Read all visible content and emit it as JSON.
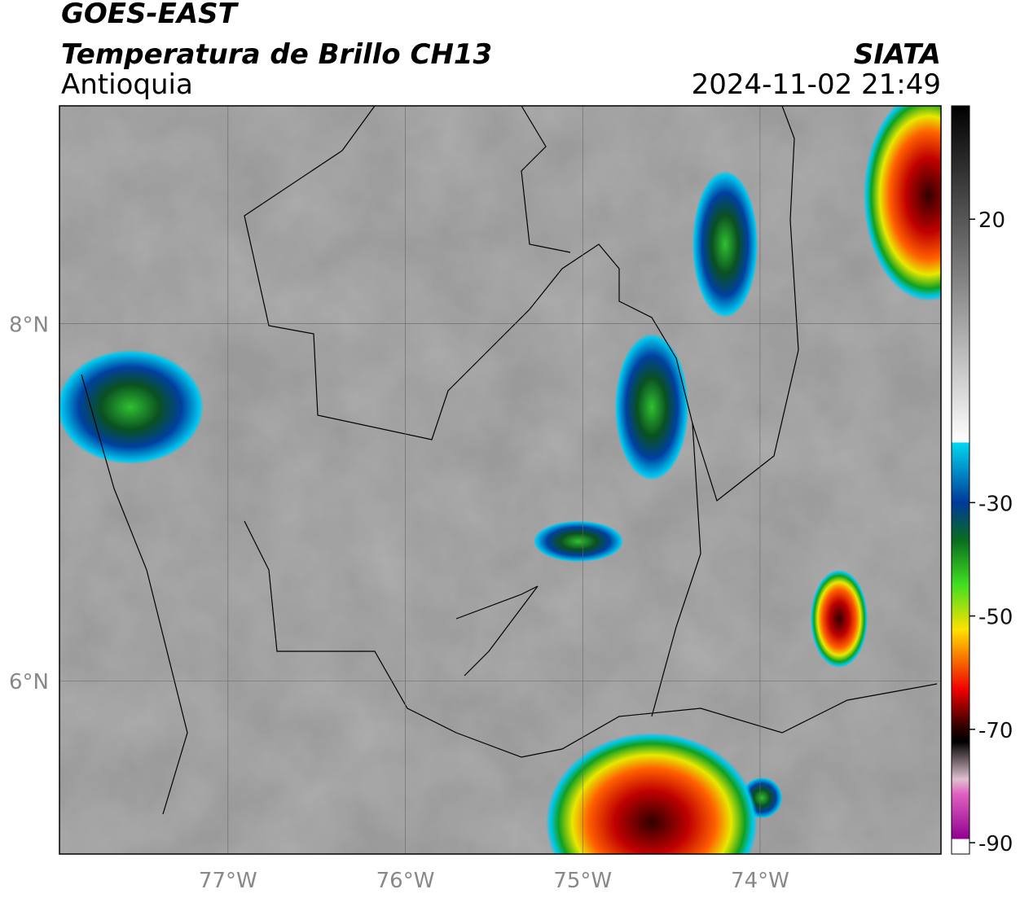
{
  "header": {
    "satellite": "GOES-EAST",
    "product": "Temperatura de Brillo CH13",
    "region": "Antioquia",
    "agency": "SIATA",
    "datetime": "2024-11-02 21:49"
  },
  "map": {
    "xlim": [
      -77.95,
      -72.98
    ],
    "ylim": [
      5.03,
      9.22
    ],
    "longitudes": [
      {
        "value": -77,
        "label": "77°W"
      },
      {
        "value": -76,
        "label": "76°W"
      },
      {
        "value": -75,
        "label": "75°W"
      },
      {
        "value": -74,
        "label": "74°W"
      }
    ],
    "latitudes": [
      {
        "value": 8,
        "label": "8°N"
      },
      {
        "value": 6,
        "label": "6°N"
      }
    ]
  },
  "colorbar": {
    "range": [
      -92,
      40
    ],
    "ticks": [
      20,
      -30,
      -50,
      -70,
      -90
    ]
  }
}
